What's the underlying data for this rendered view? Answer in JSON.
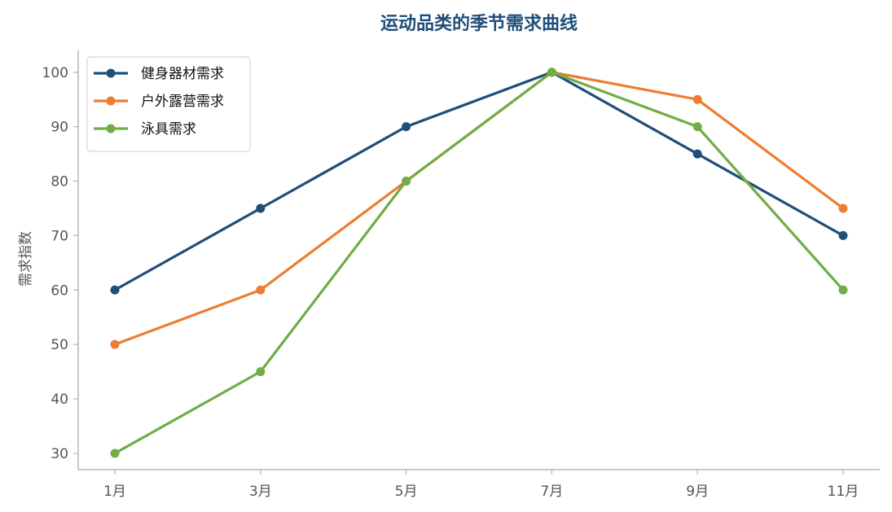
{
  "chart_data": {
    "type": "line",
    "title": "运动品类的季节需求曲线",
    "xlabel": "",
    "ylabel": "需求指数",
    "categories": [
      "1月",
      "3月",
      "5月",
      "7月",
      "9月",
      "11月"
    ],
    "ylim": [
      27,
      104
    ],
    "yticks": [
      30,
      40,
      50,
      60,
      70,
      80,
      90,
      100
    ],
    "grid": false,
    "legend_position": "top-left",
    "series": [
      {
        "name": "健身器材需求",
        "color": "#1f4e79",
        "values": [
          60,
          75,
          90,
          100,
          85,
          70
        ]
      },
      {
        "name": "户外露营需求",
        "color": "#ed7d31",
        "values": [
          50,
          60,
          80,
          100,
          95,
          75
        ]
      },
      {
        "name": "泳具需求",
        "color": "#70ad47",
        "values": [
          30,
          45,
          80,
          100,
          90,
          60
        ]
      }
    ]
  }
}
